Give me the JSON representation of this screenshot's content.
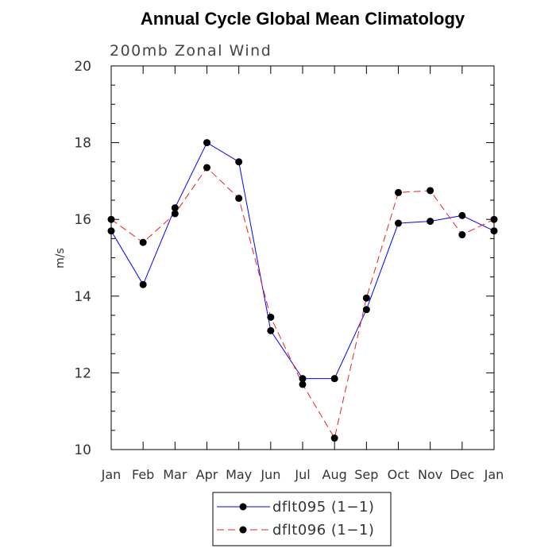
{
  "chart_data": {
    "type": "line",
    "title": "Annual Cycle Global Mean Climatology",
    "subtitle": "200mb Zonal Wind",
    "xlabel": "",
    "ylabel": "m/s",
    "categories": [
      "Jan",
      "Feb",
      "Mar",
      "Apr",
      "May",
      "Jun",
      "Jul",
      "Aug",
      "Sep",
      "Oct",
      "Nov",
      "Dec",
      "Jan"
    ],
    "ylim": [
      10,
      20
    ],
    "yticks": [
      "10",
      "12",
      "14",
      "16",
      "18",
      "20"
    ],
    "legend_position": "bottom",
    "series": [
      {
        "name": "dflt095 (1−1)",
        "color": "#0000ff",
        "dash": "solid",
        "values": [
          15.7,
          14.3,
          16.3,
          18.0,
          17.5,
          13.1,
          11.85,
          11.85,
          13.65,
          15.9,
          15.95,
          16.1,
          15.7
        ]
      },
      {
        "name": "dflt096 (1−1)",
        "color": "#e8201c",
        "dash": "dashed",
        "values": [
          16.0,
          15.4,
          16.15,
          17.35,
          16.55,
          13.45,
          11.7,
          10.3,
          13.95,
          16.7,
          16.75,
          15.6,
          16.0
        ]
      }
    ]
  }
}
